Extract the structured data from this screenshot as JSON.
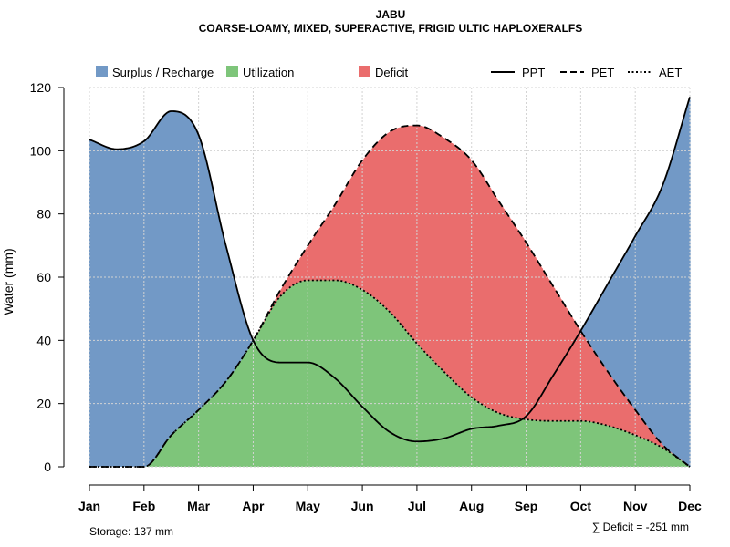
{
  "chart_data": {
    "type": "area",
    "title": "JABU",
    "subtitle": "COARSE-LOAMY, MIXED, SUPERACTIVE, FRIGID ULTIC HAPLOXERALFS",
    "xlabel": "",
    "ylabel": "Water (mm)",
    "ylim": [
      0,
      120
    ],
    "yticks": [
      0,
      20,
      40,
      60,
      80,
      100,
      120
    ],
    "grid": true,
    "categories": [
      "Jan",
      "Feb",
      "Mar",
      "Apr",
      "May",
      "Jun",
      "Jul",
      "Aug",
      "Sep",
      "Oct",
      "Nov",
      "Dec"
    ],
    "x": [
      0,
      0.5,
      1,
      1.5,
      2,
      2.5,
      3,
      3.5,
      4,
      4.5,
      5,
      5.5,
      6,
      6.5,
      7,
      7.5,
      8,
      8.5,
      9,
      9.5,
      10,
      10.5,
      11
    ],
    "series": [
      {
        "name": "PPT",
        "style": "solid",
        "values": [
          103.5,
          100.5,
          103,
          112.5,
          105,
          70,
          40,
          33,
          33,
          28,
          19,
          11,
          8,
          9,
          12,
          13,
          16,
          29,
          43,
          58,
          73,
          89,
          117
        ]
      },
      {
        "name": "PET",
        "style": "dashed",
        "values": [
          0,
          0,
          0,
          10,
          18,
          27,
          40,
          56,
          70,
          83,
          97,
          106,
          108,
          104,
          97,
          84,
          71,
          57,
          43,
          30,
          18,
          7,
          0
        ]
      },
      {
        "name": "AET",
        "style": "dotted",
        "values": [
          0,
          0,
          0,
          10,
          18,
          27,
          40,
          54,
          59,
          59,
          56,
          49,
          39,
          30,
          22,
          17,
          15,
          14.5,
          14.5,
          13,
          10,
          6,
          0
        ]
      }
    ],
    "fill_legend": [
      {
        "name": "Surplus / Recharge",
        "color": "#7299C6"
      },
      {
        "name": "Utilization",
        "color": "#7EC57A"
      },
      {
        "name": "Deficit",
        "color": "#EA6D6D"
      }
    ],
    "line_legend": [
      {
        "name": "PPT",
        "style": "solid"
      },
      {
        "name": "PET",
        "style": "dashed"
      },
      {
        "name": "AET",
        "style": "dotted"
      }
    ],
    "legend_position": "top",
    "annotations": {
      "storage": "Storage: 137 mm",
      "deficit": "∑ Deficit = -251 mm"
    }
  }
}
